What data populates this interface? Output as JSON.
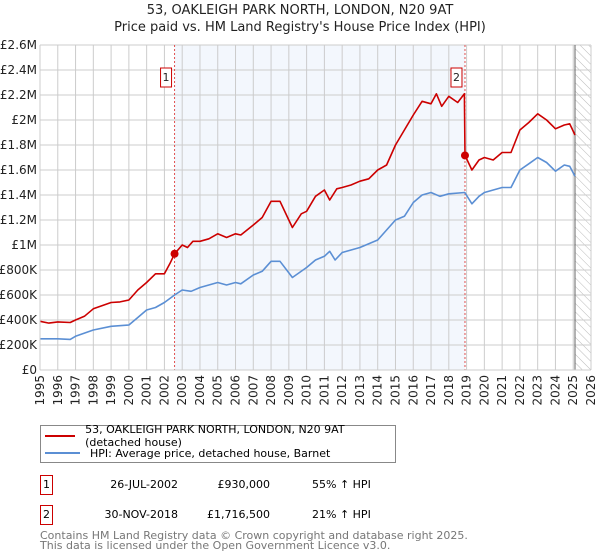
{
  "chart_data": {
    "type": "line",
    "title": "53, OAKLEIGH PARK NORTH, LONDON, N20 9AT",
    "subtitle": "Price paid vs. HM Land Registry's House Price Index (HPI)",
    "xlim": [
      1995,
      2026
    ],
    "ylim": [
      0,
      2600000
    ],
    "x_ticks": [
      "1995",
      "1996",
      "1997",
      "1998",
      "1999",
      "2000",
      "2001",
      "2002",
      "2003",
      "2004",
      "2005",
      "2006",
      "2007",
      "2008",
      "2009",
      "2010",
      "2011",
      "2012",
      "2013",
      "2014",
      "2015",
      "2016",
      "2017",
      "2018",
      "2019",
      "2020",
      "2021",
      "2022",
      "2023",
      "2024",
      "2025",
      "2026"
    ],
    "y_ticks": [
      {
        "v": 0,
        "label": "£0"
      },
      {
        "v": 200000,
        "label": "£200K"
      },
      {
        "v": 400000,
        "label": "£400K"
      },
      {
        "v": 600000,
        "label": "£600K"
      },
      {
        "v": 800000,
        "label": "£800K"
      },
      {
        "v": 1000000,
        "label": "£1M"
      },
      {
        "v": 1200000,
        "label": "£1.2M"
      },
      {
        "v": 1400000,
        "label": "£1.4M"
      },
      {
        "v": 1600000,
        "label": "£1.6M"
      },
      {
        "v": 1800000,
        "label": "£1.8M"
      },
      {
        "v": 2000000,
        "label": "£2M"
      },
      {
        "v": 2200000,
        "label": "£2.2M"
      },
      {
        "v": 2400000,
        "label": "£2.4M"
      },
      {
        "v": 2600000,
        "label": "£2.6M"
      }
    ],
    "grid": true,
    "shaded_range": [
      2002.57,
      2018.91
    ],
    "forecast_hatch_from": 2025.1,
    "series": [
      {
        "name": "53, OAKLEIGH PARK NORTH, LONDON, N20 9AT (detached house)",
        "color": "#cc0000",
        "x": [
          1995,
          1995.5,
          1996,
          1996.7,
          1997,
          1997.5,
          1998,
          1998.5,
          1999,
          1999.5,
          2000,
          2000.5,
          2001,
          2001.5,
          2002,
          2002.3,
          2002.57,
          2003,
          2003.3,
          2003.6,
          2004,
          2004.5,
          2005,
          2005.5,
          2006,
          2006.3,
          2007,
          2007.5,
          2008,
          2008.5,
          2009,
          2009.2,
          2009.7,
          2010,
          2010.5,
          2011,
          2011.3,
          2011.7,
          2012,
          2012.5,
          2013,
          2013.5,
          2014,
          2014.5,
          2015,
          2015.5,
          2016,
          2016.5,
          2017,
          2017.3,
          2017.6,
          2018,
          2018.5,
          2018.88,
          2018.91,
          2019.3,
          2019.7,
          2020,
          2020.5,
          2021,
          2021.5,
          2022,
          2022.5,
          2023,
          2023.5,
          2024,
          2024.5,
          2024.8,
          2025.1
        ],
        "y": [
          390000,
          375000,
          385000,
          380000,
          400000,
          430000,
          490000,
          515000,
          540000,
          545000,
          560000,
          640000,
          700000,
          770000,
          770000,
          850000,
          930000,
          1000000,
          980000,
          1030000,
          1030000,
          1050000,
          1090000,
          1060000,
          1090000,
          1080000,
          1160000,
          1220000,
          1350000,
          1350000,
          1200000,
          1140000,
          1250000,
          1270000,
          1390000,
          1440000,
          1360000,
          1450000,
          1460000,
          1480000,
          1510000,
          1530000,
          1600000,
          1640000,
          1800000,
          1920000,
          2040000,
          2150000,
          2130000,
          2210000,
          2110000,
          2190000,
          2140000,
          2210000,
          1716500,
          1600000,
          1680000,
          1700000,
          1680000,
          1740000,
          1740000,
          1920000,
          1980000,
          2050000,
          2000000,
          1930000,
          1960000,
          1970000,
          1880000
        ]
      },
      {
        "name": "HPI: Average price, detached house, Barnet",
        "color": "#5b8fd4",
        "x": [
          1995,
          1996,
          1996.7,
          1997,
          1998,
          1999,
          2000,
          2000.5,
          2001,
          2001.5,
          2002,
          2002.57,
          2003,
          2003.5,
          2004,
          2005,
          2005.5,
          2006,
          2006.3,
          2007,
          2007.5,
          2008,
          2008.5,
          2009.2,
          2010,
          2010.5,
          2011,
          2011.3,
          2011.6,
          2012,
          2013,
          2014,
          2014.5,
          2015,
          2015.5,
          2016,
          2016.5,
          2017,
          2017.5,
          2018,
          2018.9,
          2019.3,
          2019.7,
          2020,
          2021,
          2021.5,
          2022,
          2022.5,
          2023,
          2023.5,
          2024,
          2024.5,
          2024.8,
          2025.1
        ],
        "y": [
          250000,
          250000,
          245000,
          270000,
          320000,
          350000,
          360000,
          420000,
          480000,
          500000,
          540000,
          600000,
          640000,
          630000,
          660000,
          700000,
          680000,
          700000,
          690000,
          760000,
          790000,
          870000,
          870000,
          740000,
          820000,
          880000,
          910000,
          950000,
          880000,
          940000,
          980000,
          1040000,
          1120000,
          1200000,
          1230000,
          1340000,
          1400000,
          1420000,
          1390000,
          1410000,
          1420000,
          1330000,
          1390000,
          1420000,
          1460000,
          1460000,
          1600000,
          1650000,
          1700000,
          1660000,
          1590000,
          1640000,
          1630000,
          1550000
        ]
      }
    ],
    "annotations": [
      {
        "label": "1",
        "x": 2002.57,
        "y": 930000
      },
      {
        "label": "2",
        "x": 2018.91,
        "y": 1716500
      }
    ]
  },
  "legend": {
    "property": "53, OAKLEIGH PARK NORTH, LONDON, N20 9AT (detached house)",
    "hpi": "HPI: Average price, detached house, Barnet"
  },
  "transactions": [
    {
      "num": "1",
      "date": "26-JUL-2002",
      "price": "£930,000",
      "hpi": "55% ↑ HPI"
    },
    {
      "num": "2",
      "date": "30-NOV-2018",
      "price": "£1,716,500",
      "hpi": "21% ↑ HPI"
    }
  ],
  "footer": {
    "line1": "Contains HM Land Registry data © Crown copyright and database right 2025.",
    "line2": "This data is licensed under the Open Government Licence v3.0."
  }
}
